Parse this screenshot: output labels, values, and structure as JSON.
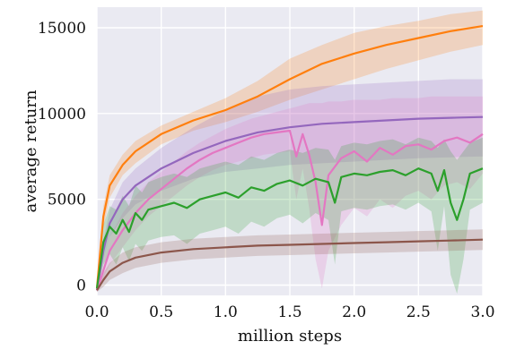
{
  "chart_data": {
    "type": "line",
    "title": "",
    "xlabel": "million steps",
    "ylabel": "average return",
    "xlim": [
      0.0,
      3.0
    ],
    "ylim": [
      -600,
      16200
    ],
    "xticks": [
      0.0,
      0.5,
      1.0,
      1.5,
      2.0,
      2.5,
      3.0
    ],
    "xtick_labels": [
      "0.0",
      "0.5",
      "1.0",
      "1.5",
      "2.0",
      "2.5",
      "3.0"
    ],
    "yticks": [
      0,
      5000,
      10000,
      15000
    ],
    "ytick_labels": [
      "0",
      "5000",
      "10000",
      "15000"
    ],
    "grid": true,
    "background": "#eaeaf2",
    "series": [
      {
        "color": "#ff7f0e",
        "x": [
          0.0,
          0.05,
          0.1,
          0.2,
          0.3,
          0.5,
          0.75,
          1.0,
          1.25,
          1.5,
          1.75,
          2.0,
          2.25,
          2.5,
          2.75,
          3.0
        ],
        "y": [
          -200,
          4000,
          5800,
          7000,
          7800,
          8800,
          9600,
          10200,
          11000,
          12000,
          12900,
          13500,
          14000,
          14400,
          14800,
          15100
        ],
        "upper": [
          -100,
          4600,
          6400,
          7600,
          8400,
          9300,
          10100,
          10900,
          11900,
          13200,
          14000,
          14700,
          15100,
          15400,
          15800,
          16000
        ],
        "lower": [
          -300,
          3300,
          5100,
          6400,
          7100,
          8200,
          9000,
          9500,
          10100,
          10800,
          11400,
          12000,
          12600,
          13100,
          13600,
          14000
        ]
      },
      {
        "color": "#9467bd",
        "x": [
          0.0,
          0.05,
          0.1,
          0.2,
          0.3,
          0.5,
          0.75,
          1.0,
          1.25,
          1.5,
          1.75,
          2.0,
          2.25,
          2.5,
          2.75,
          3.0
        ],
        "y": [
          -300,
          2000,
          3600,
          5000,
          5800,
          6800,
          7700,
          8400,
          8900,
          9200,
          9400,
          9500,
          9600,
          9700,
          9750,
          9800
        ],
        "upper": [
          -200,
          2600,
          4400,
          6000,
          6800,
          8000,
          9200,
          10200,
          11000,
          11400,
          11600,
          11700,
          11800,
          11900,
          12000,
          12000
        ],
        "lower": [
          -400,
          1400,
          2800,
          3900,
          4700,
          5500,
          6200,
          6600,
          6800,
          7000,
          7100,
          7200,
          7300,
          7400,
          7450,
          7500
        ]
      },
      {
        "color": "#e377c2",
        "x": [
          0.0,
          0.1,
          0.2,
          0.3,
          0.4,
          0.5,
          0.6,
          0.7,
          0.8,
          0.9,
          1.0,
          1.1,
          1.2,
          1.3,
          1.4,
          1.5,
          1.55,
          1.6,
          1.65,
          1.7,
          1.75,
          1.8,
          1.9,
          2.0,
          2.1,
          2.2,
          2.3,
          2.4,
          2.5,
          2.6,
          2.7,
          2.8,
          2.9,
          3.0
        ],
        "y": [
          -300,
          2000,
          3200,
          4200,
          5000,
          5600,
          6200,
          6800,
          7300,
          7700,
          8000,
          8300,
          8600,
          8800,
          8900,
          9000,
          7500,
          8800,
          7600,
          6000,
          3500,
          6400,
          7400,
          7800,
          7200,
          8000,
          7600,
          8100,
          8200,
          7900,
          8400,
          8600,
          8300,
          8800
        ],
        "upper": [
          -200,
          2800,
          4200,
          5200,
          6000,
          6600,
          7200,
          7800,
          8300,
          8700,
          9100,
          9400,
          9700,
          9900,
          10100,
          10300,
          10400,
          10500,
          10600,
          10600,
          10600,
          10700,
          10700,
          10800,
          10800,
          10800,
          10900,
          10900,
          10900,
          11000,
          11000,
          11000,
          11000,
          11000
        ],
        "lower": [
          -400,
          1200,
          2200,
          3200,
          4000,
          4600,
          5200,
          5800,
          6300,
          6700,
          7000,
          7200,
          7400,
          7600,
          7700,
          7800,
          5000,
          6800,
          4500,
          1500,
          -200,
          2000,
          3500,
          4500,
          4000,
          5000,
          4500,
          5200,
          5500,
          5000,
          5800,
          6000,
          5600,
          6500
        ]
      },
      {
        "color": "#2ca02c",
        "x": [
          0.0,
          0.05,
          0.1,
          0.15,
          0.2,
          0.25,
          0.3,
          0.35,
          0.4,
          0.5,
          0.6,
          0.7,
          0.8,
          0.9,
          1.0,
          1.1,
          1.2,
          1.3,
          1.4,
          1.5,
          1.6,
          1.7,
          1.8,
          1.85,
          1.9,
          2.0,
          2.1,
          2.2,
          2.3,
          2.4,
          2.5,
          2.6,
          2.65,
          2.7,
          2.75,
          2.8,
          2.85,
          2.9,
          3.0
        ],
        "y": [
          -200,
          2500,
          3400,
          3000,
          3800,
          3100,
          4200,
          3800,
          4400,
          4600,
          4800,
          4500,
          5000,
          5200,
          5400,
          5100,
          5700,
          5500,
          5900,
          6100,
          5800,
          6200,
          6000,
          4800,
          6300,
          6500,
          6400,
          6600,
          6700,
          6400,
          6800,
          6500,
          5500,
          6700,
          4800,
          3800,
          5000,
          6500,
          6800
        ],
        "upper": [
          -100,
          3500,
          4600,
          4400,
          5200,
          4600,
          5800,
          5400,
          6000,
          6300,
          6500,
          6300,
          6800,
          7000,
          7200,
          7000,
          7500,
          7300,
          7700,
          7900,
          7700,
          8000,
          7900,
          7300,
          8100,
          8300,
          8200,
          8400,
          8500,
          8200,
          8600,
          8400,
          8000,
          8500,
          7800,
          7300,
          7800,
          8300,
          8600
        ],
        "lower": [
          -300,
          1200,
          1800,
          1200,
          2200,
          1400,
          2400,
          2000,
          2600,
          2800,
          2900,
          2400,
          3000,
          3200,
          3400,
          3000,
          3700,
          3400,
          3900,
          4100,
          3600,
          4200,
          3800,
          1200,
          4300,
          4500,
          4400,
          4600,
          4700,
          4400,
          4800,
          4300,
          2000,
          4600,
          600,
          -500,
          1500,
          4400,
          4800
        ]
      },
      {
        "color": "#8c564b",
        "x": [
          0.0,
          0.05,
          0.1,
          0.2,
          0.3,
          0.5,
          0.75,
          1.0,
          1.25,
          1.5,
          1.75,
          2.0,
          2.25,
          2.5,
          2.75,
          3.0
        ],
        "y": [
          -300,
          300,
          800,
          1300,
          1600,
          1900,
          2100,
          2200,
          2300,
          2350,
          2400,
          2450,
          2500,
          2550,
          2600,
          2650
        ],
        "upper": [
          -200,
          700,
          1300,
          1900,
          2200,
          2500,
          2700,
          2800,
          2900,
          2950,
          3000,
          3050,
          3100,
          3150,
          3200,
          3250
        ],
        "lower": [
          -400,
          -100,
          300,
          700,
          1000,
          1300,
          1500,
          1600,
          1700,
          1750,
          1800,
          1850,
          1900,
          1950,
          2000,
          2050
        ]
      }
    ]
  }
}
